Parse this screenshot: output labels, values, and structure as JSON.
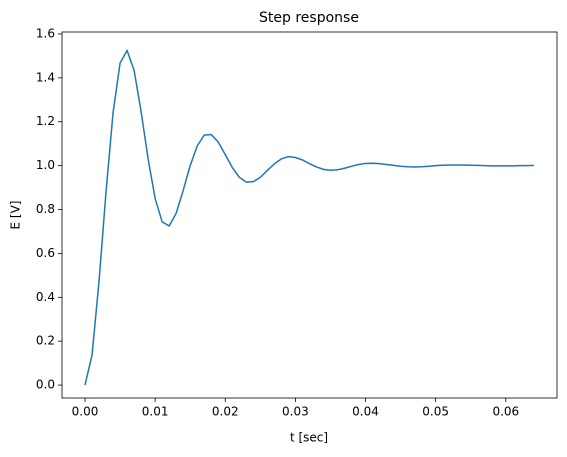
{
  "chart_data": {
    "type": "line",
    "title": "Step response",
    "xlabel": "t [sec]",
    "ylabel": "E [V]",
    "x": [
      0,
      0.001,
      0.002,
      0.003,
      0.004,
      0.005,
      0.006,
      0.007,
      0.008,
      0.009,
      0.01,
      0.011,
      0.012,
      0.013,
      0.014,
      0.015,
      0.016,
      0.017,
      0.018,
      0.019,
      0.02,
      0.021,
      0.022,
      0.023,
      0.024,
      0.025,
      0.026,
      0.027,
      0.028,
      0.029,
      0.03,
      0.031,
      0.032,
      0.033,
      0.034,
      0.035,
      0.036,
      0.037,
      0.038,
      0.039,
      0.04,
      0.041,
      0.042,
      0.043,
      0.044,
      0.045,
      0.046,
      0.047,
      0.048,
      0.049,
      0.05,
      0.051,
      0.052,
      0.053,
      0.054,
      0.055,
      0.056,
      0.057,
      0.058,
      0.059,
      0.06,
      0.061,
      0.062,
      0.063,
      0.064
    ],
    "series": [
      {
        "color": "#1f77b4",
        "values": [
          0,
          0.136,
          0.473,
          0.882,
          1.241,
          1.467,
          1.525,
          1.434,
          1.246,
          1.031,
          0.85,
          0.744,
          0.725,
          0.783,
          0.887,
          1.0,
          1.09,
          1.139,
          1.142,
          1.107,
          1.05,
          0.992,
          0.947,
          0.925,
          0.927,
          0.947,
          0.978,
          1.008,
          1.031,
          1.041,
          1.037,
          1.026,
          1.009,
          0.994,
          0.983,
          0.979,
          0.981,
          0.988,
          0.997,
          1.005,
          1.01,
          1.011,
          1.009,
          1.005,
          1.001,
          0.997,
          0.995,
          0.994,
          0.995,
          0.997,
          1.0,
          1.002,
          1.003,
          1.003,
          1.003,
          1.002,
          1.001,
          1.0,
          0.999,
          0.999,
          0.999,
          0.999,
          1.0,
          1.0,
          1.001
        ]
      }
    ],
    "xlim": [
      -0.00328,
      0.0673
    ],
    "ylim": [
      -0.059,
      1.609
    ],
    "xticks": [
      {
        "value": 0,
        "label": "0.00"
      },
      {
        "value": 0.01,
        "label": "0.01"
      },
      {
        "value": 0.02,
        "label": "0.02"
      },
      {
        "value": 0.03,
        "label": "0.03"
      },
      {
        "value": 0.04,
        "label": "0.04"
      },
      {
        "value": 0.05,
        "label": "0.05"
      },
      {
        "value": 0.06,
        "label": "0.06"
      }
    ],
    "yticks": [
      {
        "value": 0,
        "label": "0.0"
      },
      {
        "value": 0.2,
        "label": "0.2"
      },
      {
        "value": 0.4,
        "label": "0.4"
      },
      {
        "value": 0.6,
        "label": "0.6"
      },
      {
        "value": 0.8,
        "label": "0.8"
      },
      {
        "value": 1.0,
        "label": "1.0"
      },
      {
        "value": 1.2,
        "label": "1.2"
      },
      {
        "value": 1.4,
        "label": "1.4"
      },
      {
        "value": 1.6,
        "label": "1.6"
      }
    ],
    "grid": false
  }
}
